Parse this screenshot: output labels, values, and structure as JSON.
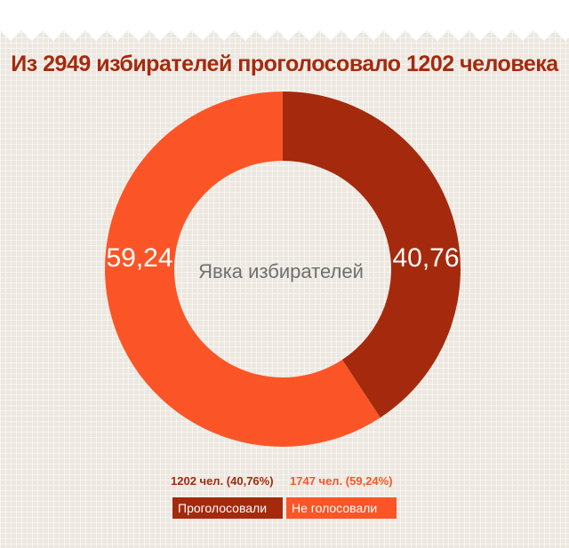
{
  "title": "Из 2949 избирателей проголосовало 1202 человека",
  "center_label": "Явка избирателей",
  "colors": {
    "voted": "#a52a0d",
    "not_voted": "#fb5527",
    "title": "#a52a0d",
    "center_text": "#6f6f6f",
    "background": "#ece7df"
  },
  "stats": {
    "voted": "1202 чел. (40,76%)",
    "not_voted": "1747 чел. (59,24%)"
  },
  "legend": {
    "voted": "Проголосовали",
    "not_voted": "Не голосовали"
  },
  "chart_data": {
    "type": "pie",
    "title": "Из 2949 избирателей проголосовало 1202 человека",
    "center_text": "Явка избирателей",
    "categories": [
      "Проголосовали",
      "Не голосовали"
    ],
    "values": [
      40.76,
      59.24
    ],
    "value_labels": [
      "40,76",
      "59,24"
    ],
    "counts": [
      1202,
      1747
    ],
    "total": 2949,
    "colors": [
      "#a52a0d",
      "#fb5527"
    ],
    "donut": true,
    "start": "top",
    "direction": "clockwise"
  }
}
